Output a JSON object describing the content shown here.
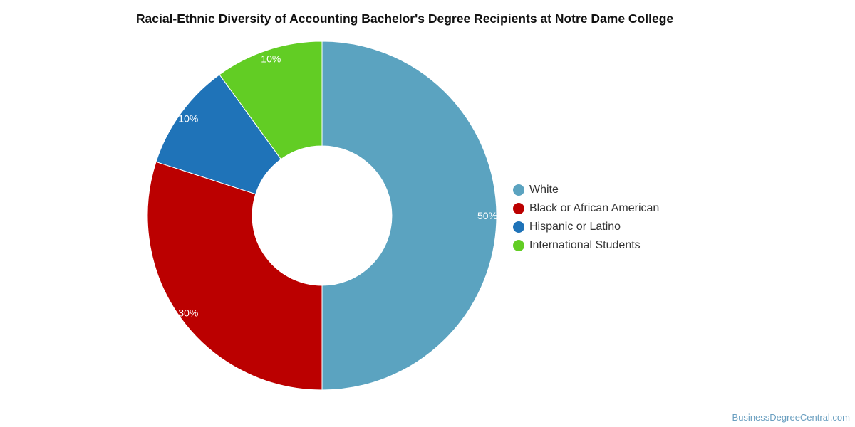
{
  "chart_data": {
    "type": "pie",
    "title": "Racial-Ethnic Diversity of Accounting Bachelor's Degree Recipients at Notre Dame College",
    "donut": true,
    "legend_position": "right",
    "slices": [
      {
        "name": "White",
        "value": 50,
        "label": "50%",
        "color": "#5ba3c0"
      },
      {
        "name": "Black or African American",
        "value": 30,
        "label": "30%",
        "color": "#bb0000"
      },
      {
        "name": "Hispanic or Latino",
        "value": 10,
        "label": "10%",
        "color": "#1f73b8"
      },
      {
        "name": "International Students",
        "value": 10,
        "label": "10%",
        "color": "#62cd24"
      }
    ]
  },
  "watermark": "BusinessDegreeCentral.com"
}
